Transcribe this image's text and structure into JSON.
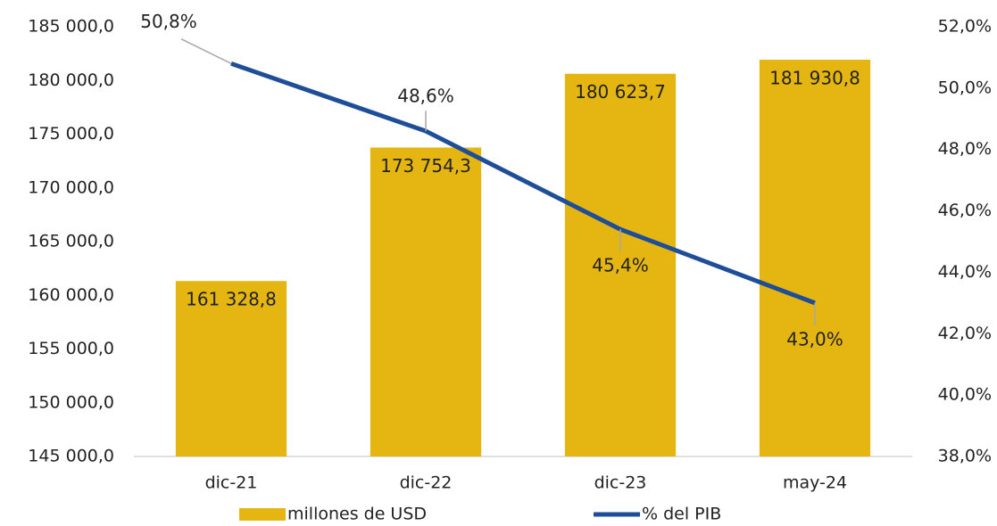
{
  "chart_data": {
    "type": "bar",
    "categories": [
      "dic-21",
      "dic-22",
      "dic-23",
      "may-24"
    ],
    "series": [
      {
        "name": "millones de USD",
        "type": "bar",
        "color": "#e5b511",
        "values": [
          161328.8,
          173754.3,
          180623.7,
          181930.8
        ],
        "value_labels": [
          "161 328,8",
          "173 754,3",
          "180 623,7",
          "181 930,8"
        ]
      },
      {
        "name": "% del PIB",
        "type": "line",
        "axis": "y2",
        "color": "#1f4e98",
        "values": [
          50.8,
          48.6,
          45.4,
          43.0
        ],
        "value_labels": [
          "50,8%",
          "48,6%",
          "45,4%",
          "43,0%"
        ]
      }
    ],
    "ylim": [
      145000,
      185000
    ],
    "yticks": [
      {
        "value": 145000,
        "label": "145 000,0"
      },
      {
        "value": 150000,
        "label": "150 000,0"
      },
      {
        "value": 155000,
        "label": "155 000,0"
      },
      {
        "value": 160000,
        "label": "160 000,0"
      },
      {
        "value": 165000,
        "label": "165 000,0"
      },
      {
        "value": 170000,
        "label": "170 000,0"
      },
      {
        "value": 175000,
        "label": "175 000,0"
      },
      {
        "value": 180000,
        "label": "180 000,0"
      },
      {
        "value": 185000,
        "label": "185 000,0"
      }
    ],
    "y2lim": [
      38,
      52
    ],
    "y2ticks": [
      {
        "value": 38,
        "label": "38,0%"
      },
      {
        "value": 40,
        "label": "40,0%"
      },
      {
        "value": 42,
        "label": "42,0%"
      },
      {
        "value": 44,
        "label": "44,0%"
      },
      {
        "value": 46,
        "label": "46,0%"
      },
      {
        "value": 48,
        "label": "48,0%"
      },
      {
        "value": 50,
        "label": "50,0%"
      },
      {
        "value": 52,
        "label": "52,0%"
      }
    ],
    "grid": false
  }
}
